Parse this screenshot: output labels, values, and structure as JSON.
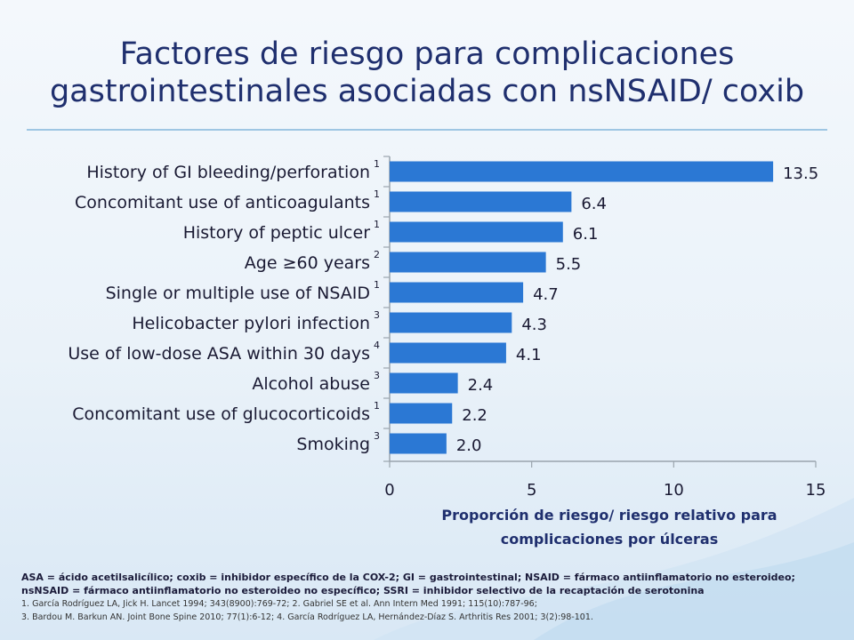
{
  "title_line1": "Factores de riesgo para complicaciones",
  "title_line2": "gastrointestinales asociadas con nsNSAID/ coxib",
  "chart_data": {
    "type": "bar",
    "orientation": "horizontal",
    "categories": [
      "History of GI bleeding/perforation",
      "Concomitant use of anticoagulants",
      "History of peptic ulcer",
      "Age ≥60 years",
      "Single or multiple use of NSAID",
      "Helicobacter pylori infection",
      "Use of low-dose ASA within 30 days",
      "Alcohol abuse",
      "Concomitant use of glucocorticoids",
      "Smoking"
    ],
    "superscripts": [
      "1",
      "1",
      "1",
      "2",
      "1",
      "3",
      "4",
      "3",
      "1",
      "3"
    ],
    "values": [
      13.5,
      6.4,
      6.1,
      5.5,
      4.7,
      4.3,
      4.1,
      2.4,
      2.2,
      2.0
    ],
    "value_labels": [
      "13.5",
      "6.4",
      "6.1",
      "5.5",
      "4.7",
      "4.3",
      "4.1",
      "2.4",
      "2.2",
      "2.0"
    ],
    "xlim": [
      0,
      15
    ],
    "xticks": [
      "0",
      "5",
      "10",
      "15"
    ],
    "xlabel_line1": "Proporción de riesgo/ riesgo relativo para",
    "xlabel_line2": "complicaciones por úlceras",
    "bar_color": "#2b78d4",
    "grid": false
  },
  "footnotes": {
    "abbr_line1": "ASA = ácido acetilsalicílico; coxib = inhibidor específico de la COX-2; GI = gastrointestinal; NSAID = fármaco antiinflamatorio no esteroideo;",
    "abbr_line2": "nsNSAID = fármaco antiinflamatorio no esteroideo no específico; SSRI = inhibidor selectivo de la recaptación de serotonina",
    "ref_line1": "1. García Rodríguez LA, Jick H. Lancet 1994; 343(8900):769-72; 2. Gabriel SE et al. Ann Intern Med 1991; 115(10):787-96;",
    "ref_line2": "3. Bardou M. Barkun AN. Joint Bone Spine 2010; 77(1):6-12; 4. García Rodríguez LA, Hernández-Díaz S. Arthritis Res 2001; 3(2):98-101."
  }
}
